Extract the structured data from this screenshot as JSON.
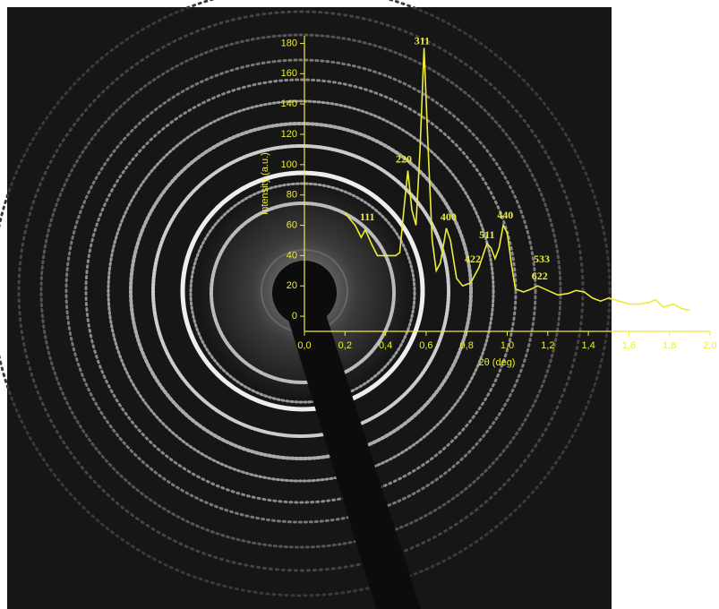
{
  "chart_data": {
    "type": "line",
    "x_label": "2θ (deg)",
    "y_label": "Intensity (a.u.)",
    "xlim": [
      0,
      2.0
    ],
    "ylim": [
      -10,
      185
    ],
    "xticks": [
      {
        "value": 0,
        "label": "0,0"
      },
      {
        "value": 0.2,
        "label": "0,2"
      },
      {
        "value": 0.4,
        "label": "0,4"
      },
      {
        "value": 0.6,
        "label": "0,6"
      },
      {
        "value": 0.8,
        "label": "0,8"
      },
      {
        "value": 1.0,
        "label": "1,0"
      },
      {
        "value": 1.2,
        "label": "1,2"
      },
      {
        "value": 1.4,
        "label": "1,4"
      },
      {
        "value": 1.6,
        "label": "1,6"
      },
      {
        "value": 1.8,
        "label": "1,8"
      },
      {
        "value": 2.0,
        "label": "2,0"
      }
    ],
    "yticks": [
      0,
      20,
      40,
      60,
      80,
      100,
      120,
      140,
      160,
      180
    ],
    "grid": false,
    "color": "#eded3a",
    "x": [
      0.2,
      0.25,
      0.28,
      0.3,
      0.33,
      0.36,
      0.4,
      0.45,
      0.47,
      0.49,
      0.51,
      0.53,
      0.55,
      0.57,
      0.59,
      0.61,
      0.63,
      0.65,
      0.67,
      0.7,
      0.72,
      0.75,
      0.78,
      0.82,
      0.86,
      0.88,
      0.9,
      0.92,
      0.94,
      0.96,
      0.98,
      1.0,
      1.02,
      1.04,
      1.08,
      1.12,
      1.15,
      1.2,
      1.25,
      1.3,
      1.34,
      1.38,
      1.42,
      1.46,
      1.5,
      1.55,
      1.6,
      1.65,
      1.7,
      1.73,
      1.77,
      1.82,
      1.86,
      1.9
    ],
    "values": [
      68,
      60,
      52,
      57,
      48,
      40,
      40,
      40,
      42,
      70,
      96,
      70,
      60,
      110,
      177,
      110,
      50,
      30,
      35,
      58,
      50,
      25,
      20,
      22,
      32,
      40,
      48,
      45,
      38,
      45,
      60,
      55,
      35,
      18,
      16,
      18,
      20,
      17,
      14,
      15,
      17,
      16,
      12,
      10,
      12,
      10,
      8,
      8,
      9,
      11,
      6,
      8,
      5,
      4
    ],
    "annotations": [
      {
        "text": "111",
        "x": 0.31,
        "y": 65
      },
      {
        "text": "220",
        "x": 0.49,
        "y": 103
      },
      {
        "text": "311",
        "x": 0.58,
        "y": 181
      },
      {
        "text": "400",
        "x": 0.71,
        "y": 65
      },
      {
        "text": "422",
        "x": 0.83,
        "y": 37
      },
      {
        "text": "511",
        "x": 0.9,
        "y": 53
      },
      {
        "text": "440",
        "x": 0.99,
        "y": 66
      },
      {
        "text": "533",
        "x": 1.17,
        "y": 37
      },
      {
        "text": "622",
        "x": 1.16,
        "y": 26
      }
    ]
  }
}
